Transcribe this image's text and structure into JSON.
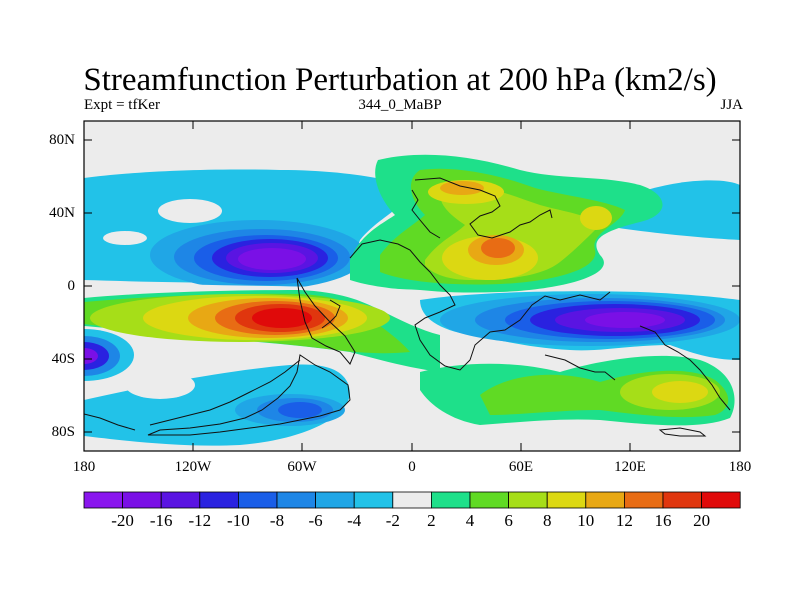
{
  "figure": {
    "title": "Streamfunction Perturbation at 200 hPa (km2/s)",
    "left_label": "Expt = tfKer",
    "center_label": "344_0_MaBP",
    "right_label": "JJA"
  },
  "axes": {
    "lat_labels": [
      "80N",
      "40N",
      "0",
      "40S",
      "80S"
    ],
    "lon_labels": [
      "180",
      "120W",
      "60W",
      "0",
      "60E",
      "120E",
      "180"
    ]
  },
  "colorbar": {
    "labels": [
      "-20",
      "-16",
      "-12",
      "-10",
      "-8",
      "-6",
      "-4",
      "-2",
      "2",
      "4",
      "6",
      "8",
      "10",
      "12",
      "16",
      "20"
    ],
    "colors": [
      "#8a16ee",
      "#7a10e6",
      "#5a14e2",
      "#2a22e0",
      "#1a5ee8",
      "#1e86e6",
      "#20a6e6",
      "#22c2e8",
      "#ececec",
      "#1ee08a",
      "#60da24",
      "#a6de18",
      "#dcd812",
      "#e8a814",
      "#e86c14",
      "#e0360e",
      "#e00a0a"
    ]
  }
}
